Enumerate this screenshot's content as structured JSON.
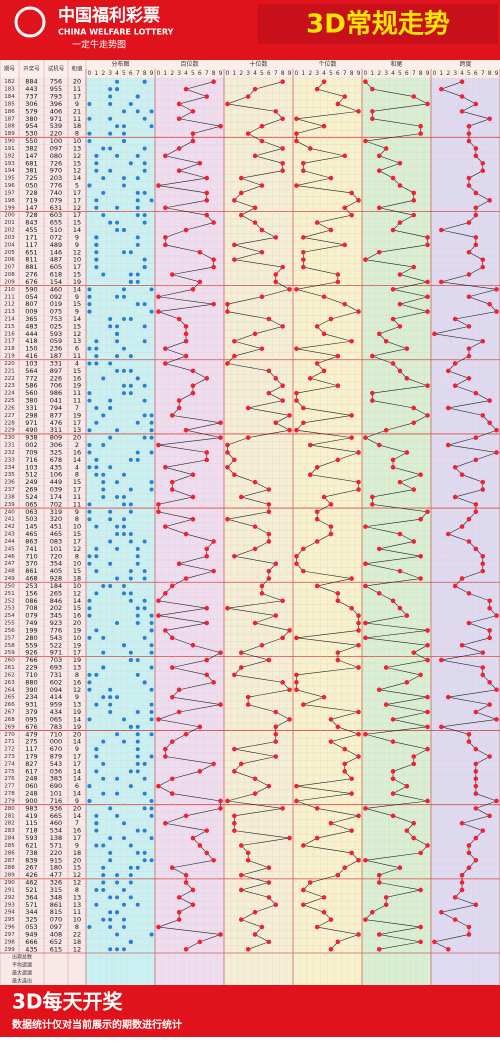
{
  "header": {
    "logo_cn": "中国福利彩票",
    "logo_en": "CHINA WELFARE LOTTERY",
    "logo_sub": "一定牛走势图",
    "title": "3D常规走势"
  },
  "columns": [
    "期号",
    "开奖号",
    "试机号",
    "和值"
  ],
  "groups": [
    "分布图",
    "百位数",
    "十位数",
    "个位数",
    "和尾",
    "跨度"
  ],
  "digits": [
    0,
    1,
    2,
    3,
    4,
    5,
    6,
    7,
    8,
    9
  ],
  "rows": [
    [
      "182",
      "884",
      "756",
      20
    ],
    [
      "183",
      "443",
      "955",
      11
    ],
    [
      "184",
      "737",
      "793",
      17
    ],
    [
      "185",
      "306",
      "396",
      9
    ],
    [
      "186",
      "579",
      "406",
      21
    ],
    [
      "187",
      "380",
      "971",
      11
    ],
    [
      "188",
      "954",
      "539",
      18
    ],
    [
      "189",
      "530",
      "220",
      8
    ],
    [
      "190",
      "550",
      "100",
      10
    ],
    [
      "191",
      "382",
      "097",
      13
    ],
    [
      "192",
      "147",
      "080",
      12
    ],
    [
      "193",
      "681",
      "726",
      15
    ],
    [
      "194",
      "381",
      "970",
      12
    ],
    [
      "195",
      "725",
      "203",
      14
    ],
    [
      "196",
      "050",
      "776",
      5
    ],
    [
      "197",
      "728",
      "740",
      17
    ],
    [
      "198",
      "719",
      "079",
      17
    ],
    [
      "199",
      "147",
      "631",
      12
    ],
    [
      "200",
      "728",
      "603",
      17
    ],
    [
      "201",
      "843",
      "655",
      15
    ],
    [
      "202",
      "455",
      "510",
      14
    ],
    [
      "203",
      "171",
      "072",
      9
    ],
    [
      "204",
      "117",
      "489",
      9
    ],
    [
      "205",
      "651",
      "146",
      12
    ],
    [
      "206",
      "811",
      "487",
      10
    ],
    [
      "207",
      "881",
      "605",
      17
    ],
    [
      "208",
      "276",
      "618",
      15
    ],
    [
      "209",
      "676",
      "154",
      19
    ],
    [
      "210",
      "590",
      "460",
      14
    ],
    [
      "211",
      "054",
      "092",
      9
    ],
    [
      "212",
      "807",
      "019",
      15
    ],
    [
      "213",
      "009",
      "075",
      9
    ],
    [
      "214",
      "365",
      "753",
      14
    ],
    [
      "215",
      "483",
      "025",
      15
    ],
    [
      "216",
      "444",
      "593",
      12
    ],
    [
      "217",
      "418",
      "059",
      13
    ],
    [
      "218",
      "150",
      "236",
      6
    ],
    [
      "219",
      "416",
      "187",
      11
    ],
    [
      "220",
      "103",
      "331",
      4
    ],
    [
      "221",
      "564",
      "897",
      15
    ],
    [
      "222",
      "772",
      "226",
      16
    ],
    [
      "223",
      "586",
      "706",
      19
    ],
    [
      "224",
      "560",
      "986",
      11
    ],
    [
      "225",
      "380",
      "041",
      11
    ],
    [
      "226",
      "331",
      "794",
      7
    ],
    [
      "227",
      "298",
      "877",
      19
    ],
    [
      "228",
      "971",
      "476",
      17
    ],
    [
      "229",
      "490",
      "311",
      13
    ],
    [
      "230",
      "938",
      "809",
      20
    ],
    [
      "231",
      "002",
      "306",
      2
    ],
    [
      "232",
      "709",
      "325",
      16
    ],
    [
      "233",
      "716",
      "678",
      14
    ],
    [
      "234",
      "103",
      "435",
      4
    ],
    [
      "235",
      "512",
      "106",
      8
    ],
    [
      "236",
      "249",
      "449",
      15
    ],
    [
      "237",
      "269",
      "039",
      17
    ],
    [
      "238",
      "524",
      "174",
      11
    ],
    [
      "239",
      "065",
      "702",
      11
    ],
    [
      "240",
      "063",
      "319",
      9
    ],
    [
      "241",
      "503",
      "320",
      8
    ],
    [
      "242",
      "145",
      "451",
      10
    ],
    [
      "243",
      "465",
      "465",
      15
    ],
    [
      "244",
      "863",
      "083",
      17
    ],
    [
      "245",
      "741",
      "101",
      12
    ],
    [
      "246",
      "710",
      "720",
      8
    ],
    [
      "247",
      "370",
      "354",
      10
    ],
    [
      "248",
      "861",
      "405",
      15
    ],
    [
      "249",
      "468",
      "928",
      18
    ],
    [
      "250",
      "253",
      "184",
      10
    ],
    [
      "251",
      "156",
      "265",
      12
    ],
    [
      "252",
      "086",
      "846",
      14
    ],
    [
      "253",
      "708",
      "202",
      15
    ],
    [
      "254",
      "079",
      "345",
      16
    ],
    [
      "255",
      "749",
      "923",
      20
    ],
    [
      "256",
      "199",
      "776",
      19
    ],
    [
      "257",
      "280",
      "543",
      10
    ],
    [
      "258",
      "559",
      "522",
      19
    ],
    [
      "259",
      "926",
      "971",
      17
    ],
    [
      "260",
      "766",
      "703",
      19
    ],
    [
      "261",
      "229",
      "693",
      13
    ],
    [
      "262",
      "710",
      "731",
      8
    ],
    [
      "263",
      "880",
      "602",
      16
    ],
    [
      "264",
      "390",
      "094",
      12
    ],
    [
      "265",
      "234",
      "414",
      9
    ],
    [
      "266",
      "931",
      "959",
      13
    ],
    [
      "267",
      "379",
      "434",
      19
    ],
    [
      "268",
      "095",
      "065",
      14
    ],
    [
      "269",
      "676",
      "783",
      19
    ],
    [
      "270",
      "479",
      "710",
      20
    ],
    [
      "271",
      "275",
      "000",
      14
    ],
    [
      "272",
      "117",
      "670",
      9
    ],
    [
      "273",
      "179",
      "879",
      17
    ],
    [
      "274",
      "827",
      "543",
      17
    ],
    [
      "275",
      "617",
      "036",
      14
    ],
    [
      "276",
      "248",
      "383",
      14
    ],
    [
      "277",
      "060",
      "690",
      6
    ],
    [
      "278",
      "248",
      "101",
      14
    ],
    [
      "279",
      "900",
      "716",
      9
    ],
    [
      "280",
      "983",
      "936",
      20
    ],
    [
      "281",
      "419",
      "665",
      14
    ],
    [
      "282",
      "115",
      "460",
      7
    ],
    [
      "283",
      "718",
      "534",
      16
    ],
    [
      "284",
      "593",
      "138",
      17
    ],
    [
      "285",
      "621",
      "571",
      9
    ],
    [
      "286",
      "738",
      "220",
      18
    ],
    [
      "287",
      "839",
      "915",
      20
    ],
    [
      "288",
      "267",
      "180",
      15
    ],
    [
      "289",
      "426",
      "477",
      12
    ],
    [
      "290",
      "462",
      "326",
      12
    ],
    [
      "291",
      "521",
      "315",
      8
    ],
    [
      "292",
      "364",
      "348",
      13
    ],
    [
      "293",
      "571",
      "861",
      13
    ],
    [
      "294",
      "344",
      "815",
      11
    ],
    [
      "295",
      "325",
      "070",
      10
    ],
    [
      "296",
      "053",
      "097",
      8
    ],
    [
      "297",
      "949",
      "408",
      22
    ],
    [
      "298",
      "666",
      "652",
      18
    ],
    [
      "299",
      "435",
      "615",
      12
    ]
  ],
  "stats_labels": [
    "出现总数",
    "平均遗漏",
    "最大遗漏",
    "最大连出"
  ],
  "footer": {
    "title": "3D每天开奖",
    "note": "数据统计仅对当前展示的期数进行统计"
  }
}
